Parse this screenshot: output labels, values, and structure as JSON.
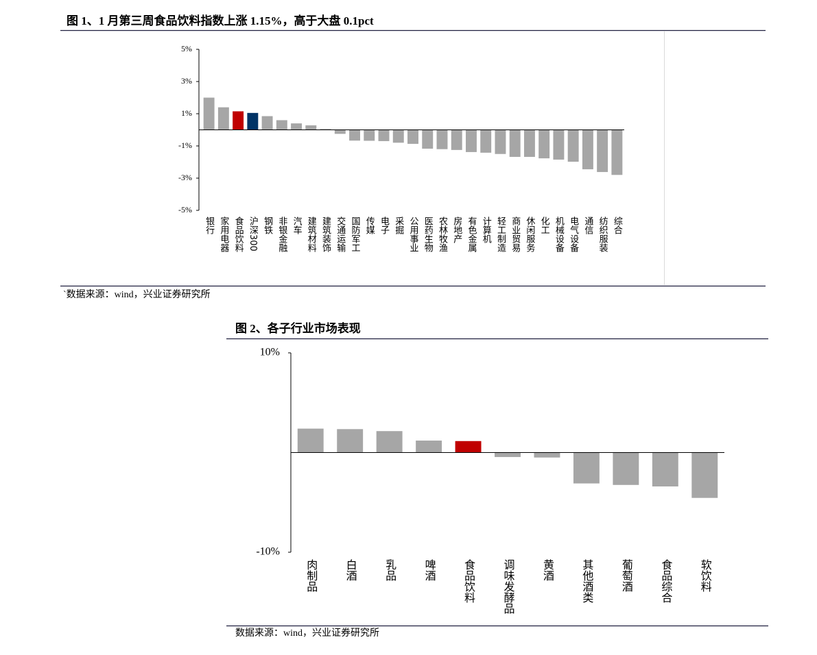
{
  "chart_data": [
    {
      "type": "bar",
      "title": "图 1、1 月第三周食品饮料指数上涨 1.15%，高于大盘 0.1pct",
      "source": "`数据来源：wind，兴业证券研究所",
      "categories": [
        "银行",
        "家用电器",
        "食品饮料",
        "沪深300",
        "钢铁",
        "非银金融",
        "汽车",
        "建筑材料",
        "建筑装饰",
        "交通运输",
        "国防军工",
        "传媒",
        "电子",
        "采掘",
        "公用事业",
        "医药生物",
        "农林牧渔",
        "房地产",
        "有色金属",
        "计算机",
        "轻工制造",
        "商业贸易",
        "休闲服务",
        "化工",
        "机械设备",
        "电气设备",
        "通信",
        "纺织服装",
        "综合"
      ],
      "values": [
        2.0,
        1.4,
        1.15,
        1.05,
        0.85,
        0.6,
        0.4,
        0.28,
        0.05,
        -0.25,
        -0.67,
        -0.68,
        -0.7,
        -0.8,
        -0.87,
        -1.17,
        -1.2,
        -1.25,
        -1.38,
        -1.42,
        -1.5,
        -1.68,
        -1.68,
        -1.77,
        -1.85,
        -1.98,
        -2.45,
        -2.62,
        -2.8
      ],
      "colors": [
        "#a6a6a6",
        "#a6a6a6",
        "#c00000",
        "#003366",
        "#a6a6a6",
        "#a6a6a6",
        "#a6a6a6",
        "#a6a6a6",
        "#a6a6a6",
        "#a6a6a6",
        "#a6a6a6",
        "#a6a6a6",
        "#a6a6a6",
        "#a6a6a6",
        "#a6a6a6",
        "#a6a6a6",
        "#a6a6a6",
        "#a6a6a6",
        "#a6a6a6",
        "#a6a6a6",
        "#a6a6a6",
        "#a6a6a6",
        "#a6a6a6",
        "#a6a6a6",
        "#a6a6a6",
        "#a6a6a6",
        "#a6a6a6",
        "#a6a6a6",
        "#a6a6a6"
      ],
      "ylim": [
        -5,
        5
      ],
      "yticks": [
        {
          "value": 5,
          "label": "5%"
        },
        {
          "value": 3,
          "label": "3%"
        },
        {
          "value": 1,
          "label": "1%"
        },
        {
          "value": -1,
          "label": "-1%"
        },
        {
          "value": -3,
          "label": "-3%"
        },
        {
          "value": -5,
          "label": "-5%"
        }
      ]
    },
    {
      "type": "bar",
      "title": "图 2、各子行业市场表现",
      "source": "数据来源：wind，兴业证券研究所",
      "categories": [
        "肉制品",
        "白酒",
        "乳品",
        "啤酒",
        "食品饮料",
        "调味发酵品",
        "黄酒",
        "其他酒类",
        "葡萄酒",
        "食品综合",
        "软饮料"
      ],
      "values": [
        2.4,
        2.35,
        2.15,
        1.2,
        1.15,
        -0.45,
        -0.5,
        -3.1,
        -3.25,
        -3.4,
        -4.55
      ],
      "colors": [
        "#a6a6a6",
        "#a6a6a6",
        "#a6a6a6",
        "#a6a6a6",
        "#c00000",
        "#a6a6a6",
        "#a6a6a6",
        "#a6a6a6",
        "#a6a6a6",
        "#a6a6a6",
        "#a6a6a6"
      ],
      "ylim": [
        -10,
        10
      ],
      "yticks": [
        {
          "value": 10,
          "label": "10%"
        },
        {
          "value": -10,
          "label": "-10%"
        }
      ]
    }
  ]
}
